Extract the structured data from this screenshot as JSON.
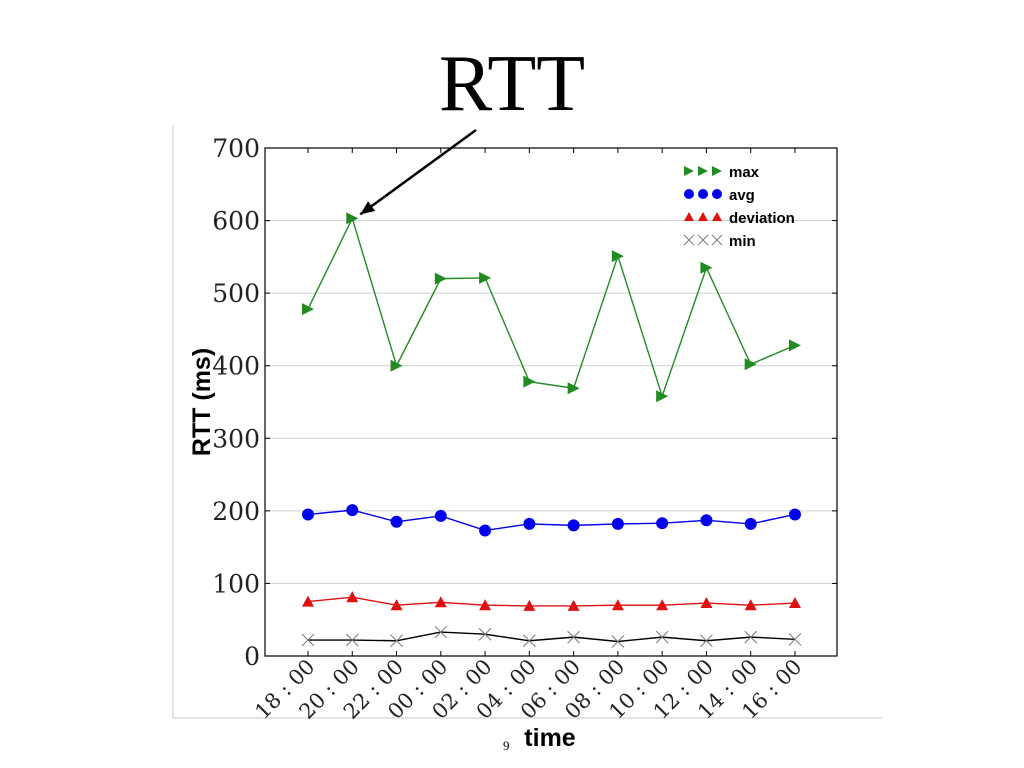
{
  "slide": {
    "title": "RTT",
    "page_number": "9"
  },
  "chart_data": {
    "type": "line",
    "title": "",
    "xlabel": "time",
    "ylabel": "RTT (ms)",
    "ylim": [
      0,
      700
    ],
    "yticks": [
      "0",
      "100",
      "200",
      "300",
      "400",
      "500",
      "600",
      "700"
    ],
    "categories": [
      "18 : 00",
      "20 : 00",
      "22 : 00",
      "00 : 00",
      "02 : 00",
      "04 : 00",
      "06 : 00",
      "08 : 00",
      "10 : 00",
      "12 : 00",
      "14 : 00",
      "16 : 00"
    ],
    "grid": "horizontal",
    "legend_position": "top-right",
    "annotation": {
      "points_to": "max at 20 : 00"
    },
    "series": [
      {
        "name": "max",
        "color": "#228b22",
        "marker": "triangle-right",
        "values": [
          478,
          603,
          400,
          520,
          521,
          378,
          369,
          551,
          358,
          535,
          402,
          428
        ]
      },
      {
        "name": "avg",
        "color": "#0000ee",
        "marker": "circle",
        "values": [
          195,
          201,
          185,
          193,
          173,
          182,
          180,
          182,
          183,
          187,
          182,
          195
        ]
      },
      {
        "name": "deviation",
        "color": "#e01010",
        "marker": "triangle-up",
        "values": [
          75,
          81,
          70,
          74,
          70,
          69,
          69,
          70,
          70,
          73,
          70,
          73
        ]
      },
      {
        "name": "min",
        "color": "#000000",
        "marker": "cross",
        "values": [
          22,
          22,
          21,
          33,
          30,
          21,
          26,
          20,
          26,
          21,
          26,
          23
        ]
      }
    ]
  }
}
